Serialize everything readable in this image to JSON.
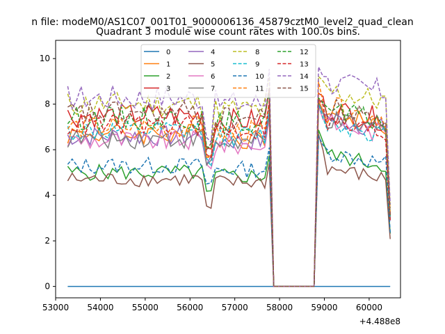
{
  "chart_data": {
    "type": "line",
    "suptitle": "n file: modeM0/AS1C07_001T01_9000006136_45879cztM0_level2_quad_clean",
    "title": "Quadrant 3 module wise count rates with 100.0s bins.",
    "xlabel": "",
    "ylabel": "",
    "x_offset_label": "+4.488e8",
    "xlim": [
      53000,
      60700
    ],
    "ylim": [
      -0.5,
      10.8
    ],
    "xticks": [
      53000,
      54000,
      55000,
      56000,
      57000,
      58000,
      59000,
      60000
    ],
    "yticks": [
      0,
      2,
      4,
      6,
      8,
      10
    ],
    "x_range": [
      53270,
      60470
    ],
    "bin_step": 100,
    "gap": [
      57870,
      58770
    ],
    "legend_location": "upper center",
    "legend_columns": 4,
    "series": [
      {
        "name": "0",
        "color": "#1f77b4",
        "style": "solid",
        "mean1": 0.0,
        "mean2": 0.0,
        "dip": 0.0,
        "peak": 0.0
      },
      {
        "name": "1",
        "color": "#ff7f0e",
        "style": "solid",
        "mean1": 6.7,
        "mean2": 7.6,
        "dip": 5.9,
        "peak": 8.6
      },
      {
        "name": "2",
        "color": "#2ca02c",
        "style": "solid",
        "mean1": 5.0,
        "mean2": 5.8,
        "dip": 4.1,
        "peak": 7.5
      },
      {
        "name": "3",
        "color": "#d62728",
        "style": "solid",
        "mean1": 7.5,
        "mean2": 7.8,
        "dip": 6.1,
        "peak": 8.9
      },
      {
        "name": "4",
        "color": "#9467bd",
        "style": "solid",
        "mean1": 6.6,
        "mean2": 7.4,
        "dip": 5.5,
        "peak": 8.4
      },
      {
        "name": "5",
        "color": "#8c564b",
        "style": "solid",
        "mean1": 4.7,
        "mean2": 5.2,
        "dip": 3.4,
        "peak": 7.4
      },
      {
        "name": "6",
        "color": "#e377c2",
        "style": "solid",
        "mean1": 6.4,
        "mean2": 7.2,
        "dip": 5.3,
        "peak": 8.2
      },
      {
        "name": "7",
        "color": "#7f7f7f",
        "style": "solid",
        "mean1": 6.5,
        "mean2": 7.3,
        "dip": 5.4,
        "peak": 8.3
      },
      {
        "name": "8",
        "color": "#bcbd22",
        "style": "dashed",
        "mean1": 8.0,
        "mean2": 8.6,
        "dip": 6.3,
        "peak": 9.3
      },
      {
        "name": "9",
        "color": "#17becf",
        "style": "dashed",
        "mean1": 6.8,
        "mean2": 7.2,
        "dip": 5.5,
        "peak": 8.2
      },
      {
        "name": "10",
        "color": "#1f77b4",
        "style": "dashed",
        "mean1": 5.3,
        "mean2": 5.9,
        "dip": 4.5,
        "peak": 6.7
      },
      {
        "name": "11",
        "color": "#ff7f0e",
        "style": "dashed",
        "mean1": 7.0,
        "mean2": 7.9,
        "dip": 5.8,
        "peak": 9.2
      },
      {
        "name": "12",
        "color": "#2ca02c",
        "style": "dashed",
        "mean1": 7.4,
        "mean2": 7.7,
        "dip": 5.9,
        "peak": 8.9
      },
      {
        "name": "13",
        "color": "#d62728",
        "style": "dashed",
        "mean1": 7.1,
        "mean2": 7.2,
        "dip": 5.7,
        "peak": 9.0
      },
      {
        "name": "14",
        "color": "#9467bd",
        "style": "dashed",
        "mean1": 8.3,
        "mean2": 9.0,
        "dip": 6.6,
        "peak": 10.2
      },
      {
        "name": "15",
        "color": "#8c564b",
        "style": "dashed",
        "mean1": 7.6,
        "mean2": 7.8,
        "dip": 6.2,
        "peak": 8.6
      }
    ]
  }
}
